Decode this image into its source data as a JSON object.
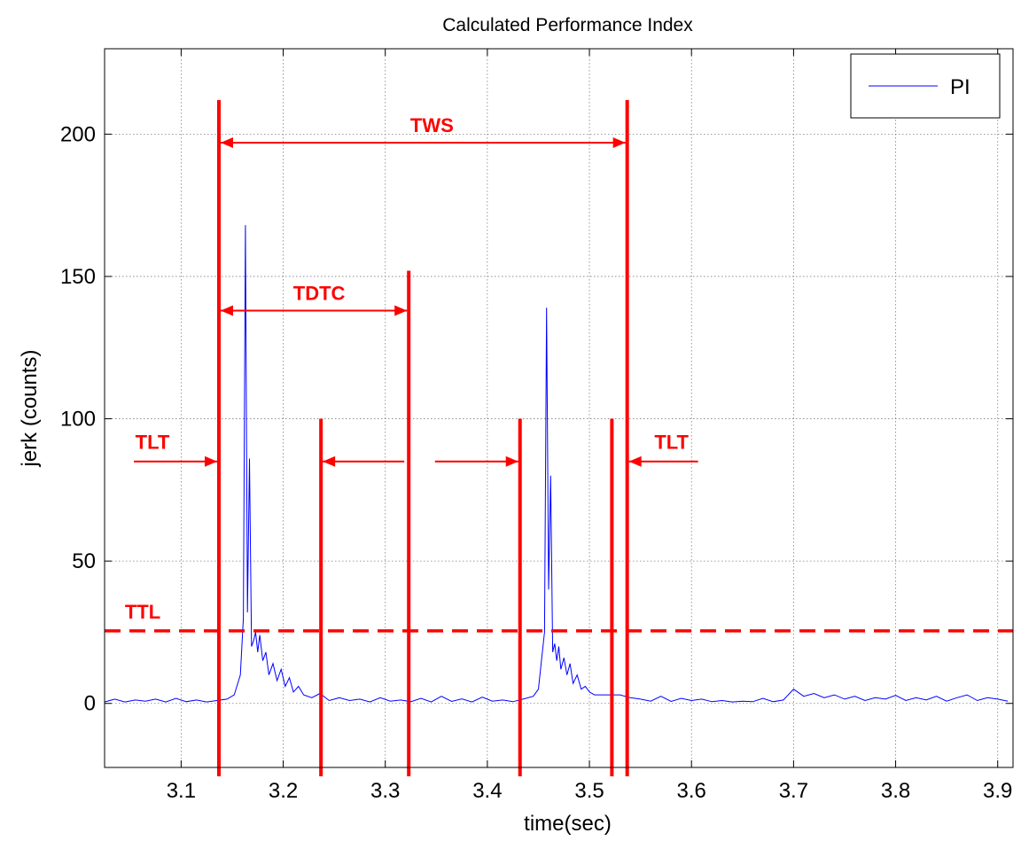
{
  "chart_data": {
    "type": "line",
    "title": "Calculated Performance Index",
    "xlabel": "time(sec)",
    "ylabel": "jerk (counts)",
    "xlim": [
      3.025,
      3.915
    ],
    "ylim": [
      -22.5,
      230
    ],
    "xticks": [
      3.1,
      3.2,
      3.3,
      3.4,
      3.5,
      3.6,
      3.7,
      3.8,
      3.9
    ],
    "xtick_labels": [
      "3.1",
      "3.2",
      "3.3",
      "3.4",
      "3.5",
      "3.6",
      "3.7",
      "3.8",
      "3.9"
    ],
    "yticks": [
      0,
      50,
      100,
      150,
      200
    ],
    "ytick_labels": [
      "0",
      "50",
      "100",
      "150",
      "200"
    ],
    "grid": true,
    "legend": {
      "position": "top-right",
      "entries": [
        "PI"
      ]
    },
    "colors": {
      "series": "#0000ff",
      "annotation": "#ff0000"
    },
    "series": [
      {
        "name": "PI",
        "x": [
          3.025,
          3.035,
          3.045,
          3.055,
          3.065,
          3.075,
          3.085,
          3.095,
          3.105,
          3.115,
          3.125,
          3.135,
          3.145,
          3.152,
          3.158,
          3.161,
          3.163,
          3.165,
          3.167,
          3.169,
          3.171,
          3.173,
          3.175,
          3.177,
          3.18,
          3.183,
          3.186,
          3.19,
          3.194,
          3.198,
          3.202,
          3.206,
          3.21,
          3.215,
          3.22,
          3.228,
          3.236,
          3.245,
          3.255,
          3.265,
          3.275,
          3.285,
          3.295,
          3.305,
          3.315,
          3.325,
          3.335,
          3.345,
          3.355,
          3.365,
          3.375,
          3.385,
          3.395,
          3.405,
          3.415,
          3.425,
          3.435,
          3.445,
          3.45,
          3.453,
          3.456,
          3.458,
          3.46,
          3.462,
          3.464,
          3.466,
          3.468,
          3.47,
          3.472,
          3.475,
          3.478,
          3.481,
          3.484,
          3.488,
          3.492,
          3.496,
          3.5,
          3.505,
          3.51,
          3.52,
          3.53,
          3.54,
          3.55,
          3.56,
          3.57,
          3.58,
          3.59,
          3.6,
          3.61,
          3.62,
          3.63,
          3.64,
          3.65,
          3.66,
          3.67,
          3.68,
          3.69,
          3.7,
          3.71,
          3.72,
          3.73,
          3.74,
          3.75,
          3.76,
          3.77,
          3.78,
          3.79,
          3.8,
          3.81,
          3.82,
          3.83,
          3.84,
          3.85,
          3.86,
          3.87,
          3.88,
          3.89,
          3.9,
          3.91
        ],
        "y": [
          0.5,
          1.5,
          0.5,
          1.2,
          0.8,
          1.5,
          0.5,
          1.8,
          0.6,
          1.2,
          0.5,
          1,
          1.5,
          3,
          10,
          30,
          168,
          32,
          86,
          20,
          22,
          25,
          18,
          24,
          15,
          18,
          10,
          14,
          8,
          12,
          6,
          9,
          4,
          6,
          3,
          2,
          3.5,
          1,
          2,
          1,
          1.5,
          0.5,
          2,
          0.8,
          1.2,
          0.6,
          1.8,
          0.5,
          2.5,
          0.7,
          1.6,
          0.5,
          2.2,
          0.8,
          1.2,
          0.6,
          1.5,
          2.5,
          5,
          15,
          25,
          139,
          40,
          80,
          18,
          21,
          15,
          20,
          12,
          16,
          10,
          14,
          7,
          10,
          5,
          6,
          4,
          3,
          3,
          3,
          3,
          2,
          1.5,
          0.8,
          2.5,
          0.7,
          1.8,
          1,
          1.5,
          0.6,
          1,
          0.5,
          0.8,
          0.6,
          1.8,
          0.6,
          1.2,
          5,
          2.5,
          3.5,
          2,
          3,
          1.5,
          2.5,
          1,
          2,
          1.5,
          2.8,
          1,
          2,
          1.2,
          2.5,
          0.8,
          2,
          3,
          1,
          2,
          1.5,
          0.8
        ]
      }
    ],
    "annotations": {
      "labels": [
        "TWS",
        "TDTC",
        "TLT",
        "TLT",
        "TTL"
      ],
      "vertical_lines": [
        {
          "x": 3.137,
          "y_top": 212
        },
        {
          "x": 3.537,
          "y_top": 212
        },
        {
          "x": 3.323,
          "y_top": 152
        },
        {
          "x": 3.237,
          "y_top": 100
        },
        {
          "x": 3.432,
          "y_top": 100
        },
        {
          "x": 3.522,
          "y_top": 100
        }
      ],
      "threshold_y": 25.5
    }
  }
}
